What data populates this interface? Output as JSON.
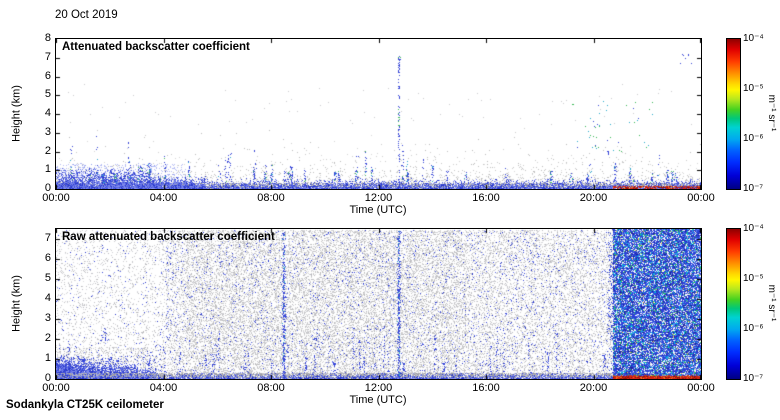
{
  "figure": {
    "date_label": "20 Oct 2019",
    "footer_label": "Sodankyla CT25K ceilometer"
  },
  "panel1": {
    "title": "Attenuated backscatter coefficient",
    "ylabel": "Height (km)",
    "xlabel": "Time (UTC)",
    "ymin": 0,
    "ymax": 8,
    "yticks": [
      "0",
      "1",
      "2",
      "3",
      "4",
      "5",
      "6",
      "7",
      "8"
    ],
    "xticks": [
      "00:00",
      "04:00",
      "08:00",
      "12:00",
      "16:00",
      "20:00",
      "00:00"
    ]
  },
  "panel2": {
    "title": "Raw attenuated backscatter coefficient",
    "ylabel": "Height (km)",
    "xlabel": "Time (UTC)",
    "ymin": 0,
    "ymax": 7.5,
    "yticks": [
      "0",
      "1",
      "2",
      "3",
      "4",
      "5",
      "6",
      "7"
    ],
    "xticks": [
      "00:00",
      "04:00",
      "08:00",
      "12:00",
      "16:00",
      "20:00",
      "00:00"
    ]
  },
  "colorbar": {
    "unit_label": "m⁻¹ sr⁻¹",
    "tick_labels": [
      "10⁻⁴",
      "10⁻⁵",
      "10⁻⁶",
      "10⁻⁷"
    ],
    "colormap": "jet"
  },
  "chart_data": {
    "type": "heatmap",
    "title": "Ceilometer attenuated backscatter, Sodankyla CT25K, 20 Oct 2019",
    "colorscale": {
      "type": "log",
      "min": 1e-07,
      "max": 0.0001,
      "units": "m-1 sr-1",
      "colormap": "jet"
    },
    "panels": [
      {
        "title": "Attenuated backscatter coefficient",
        "xlabel": "Time (UTC)",
        "x_range_hours": [
          0,
          24
        ],
        "x_ticks": [
          "00:00",
          "04:00",
          "08:00",
          "12:00",
          "16:00",
          "20:00",
          "00:00"
        ],
        "ylabel": "Height (km)",
        "y_range_km": [
          0,
          8
        ],
        "features": [
          {
            "feature": "surface aerosol band",
            "time_hours": [
              0,
              24
            ],
            "height_km": [
              0,
              0.4
            ],
            "level": "weak-moderate (gray-blue)"
          },
          {
            "feature": "shallow morning plume",
            "time_hours": [
              0,
              3.5
            ],
            "height_km": [
              0,
              1.1
            ],
            "level": "moderate (blue)"
          },
          {
            "feature": "intermittent aerosol/virga streaks",
            "time_hours": [
              0.5,
              20
            ],
            "height_km": [
              0.4,
              3
            ],
            "level": "weak (blue specks)"
          },
          {
            "feature": "deep precipitation column",
            "time_hours": [
              12.7,
              12.9
            ],
            "height_km": [
              0,
              7.1
            ],
            "level": "weak-moderate (blue/green)"
          },
          {
            "feature": "scattered cloud returns",
            "time_hours": [
              19.3,
              22
            ],
            "height_km": [
              1.8,
              4.6
            ],
            "level": "moderate (green/cyan)"
          },
          {
            "feature": "high cloud specks",
            "time_hours": [
              23.3,
              23.8
            ],
            "height_km": [
              6.4,
              7.2
            ],
            "level": "weak (blue)"
          },
          {
            "feature": "strong surface return band",
            "time_hours": [
              20.7,
              24
            ],
            "height_km": [
              0,
              0.15
            ],
            "level": "strong (red, ~1e-4)"
          }
        ]
      },
      {
        "title": "Raw attenuated backscatter coefficient",
        "xlabel": "Time (UTC)",
        "x_range_hours": [
          0,
          24
        ],
        "x_ticks": [
          "00:00",
          "04:00",
          "08:00",
          "12:00",
          "16:00",
          "20:00",
          "00:00"
        ],
        "ylabel": "Height (km)",
        "y_range_km": [
          0,
          7.5
        ],
        "features": [
          {
            "feature": "instrument background noise",
            "time_hours": [
              0,
              24
            ],
            "height_km": [
              0,
              7.5
            ],
            "level": "weak (gray speckle over full panel)"
          },
          {
            "feature": "shallow morning plume",
            "time_hours": [
              0,
              3.5
            ],
            "height_km": [
              0,
              1.1
            ],
            "level": "moderate (blue)"
          },
          {
            "feature": "surface aerosol band",
            "time_hours": [
              0,
              24
            ],
            "height_km": [
              0,
              0.35
            ],
            "level": "weak-moderate (gray-blue)"
          },
          {
            "feature": "deep noisy columns",
            "time_hours": [
              8.5,
              12.9
            ],
            "height_km": [
              0,
              7.5
            ],
            "level": "weak (blue streaks near 08:30 and 12:45)"
          },
          {
            "feature": "high-noise block, low signal-to-noise",
            "time_hours": [
              20.7,
              24
            ],
            "height_km": [
              0,
              7.5
            ],
            "level": "dense blue/cyan random noise"
          },
          {
            "feature": "strong surface return band",
            "time_hours": [
              20.7,
              24
            ],
            "height_km": [
              0,
              0.15
            ],
            "level": "strong (red, ~1e-4)"
          }
        ]
      }
    ]
  }
}
